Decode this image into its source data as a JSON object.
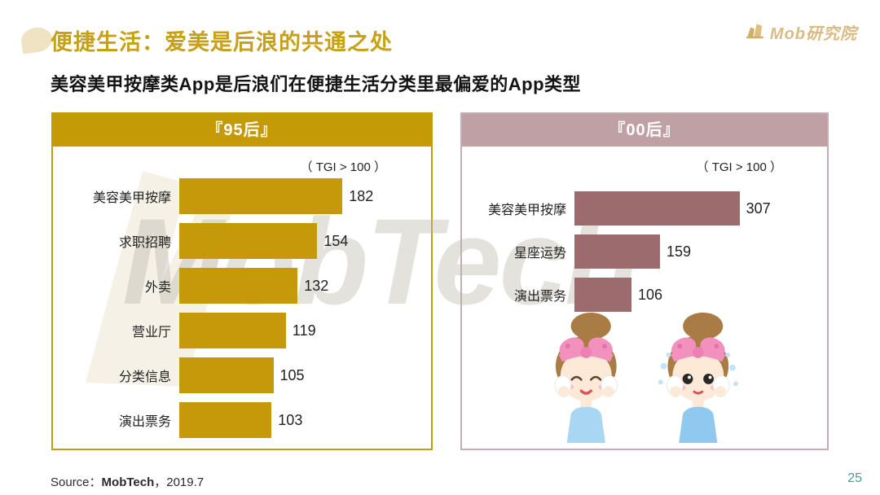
{
  "page": {
    "title": "便捷生活：爱美是后浪的共通之处",
    "subtitle": "美容美甲按摩类App是后浪们在便捷生活分类里最偏爱的App类型",
    "logo_text": "Mob研究院",
    "watermark": "MobTech",
    "source_prefix": "Source：",
    "source_brand": "MobTech",
    "source_suffix": "，2019.7",
    "page_number": "25"
  },
  "chart_data": [
    {
      "type": "bar",
      "orientation": "horizontal",
      "title": "『95后』",
      "note": "（ TGI > 100 ）",
      "categories": [
        "美容美甲按摩",
        "求职招聘",
        "外卖",
        "营业厅",
        "分类信息",
        "演出票务"
      ],
      "values": [
        182,
        154,
        132,
        119,
        105,
        103
      ],
      "xlim": [
        0,
        200
      ],
      "bar_color": "#c6990b",
      "header_color": "#c49a06",
      "border_color": "#c49a10",
      "value_labels_shown": true,
      "grid": false,
      "legend": false
    },
    {
      "type": "bar",
      "orientation": "horizontal",
      "title": "『00后』",
      "note": "（ TGI > 100 ）",
      "categories": [
        "美容美甲按摩",
        "星座运势",
        "演出票务"
      ],
      "values": [
        307,
        159,
        106
      ],
      "xlim": [
        0,
        340
      ],
      "bar_color": "#9c6b6d",
      "header_color": "#bfa1a5",
      "border_color": "#c4aeb0",
      "value_labels_shown": true,
      "grid": false,
      "legend": false
    }
  ]
}
